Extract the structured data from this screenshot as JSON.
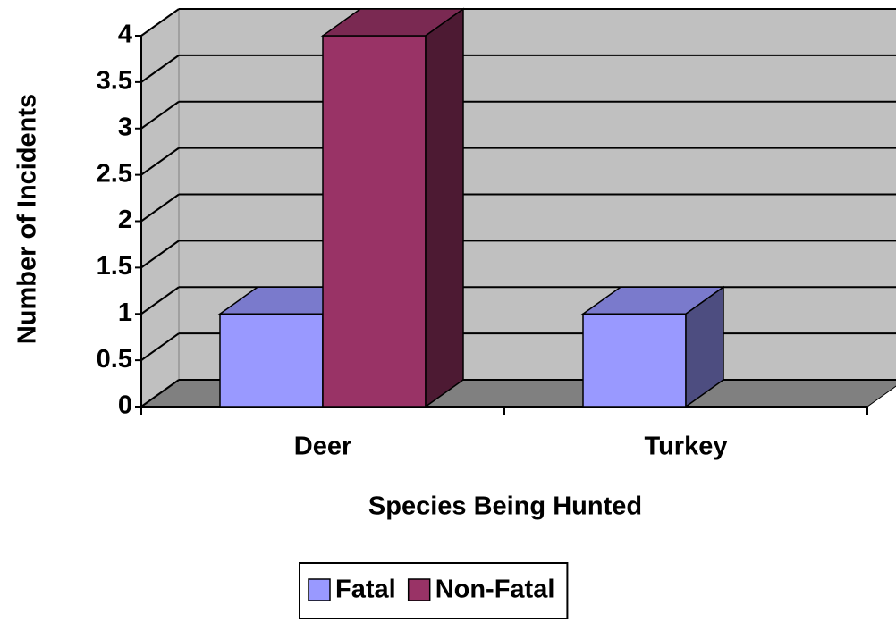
{
  "chart_data": {
    "type": "bar3d",
    "y_axis_label": "Number of Incidents",
    "x_axis_label": "Species Being Hunted",
    "categories": [
      "Deer",
      "Turkey"
    ],
    "series": [
      {
        "name": "Fatal",
        "color": "#9999ff",
        "values": [
          1,
          1
        ]
      },
      {
        "name": "Non-Fatal",
        "color": "#993366",
        "values": [
          4,
          0
        ]
      }
    ],
    "ylim": [
      0,
      4
    ],
    "yticks": [
      0,
      0.5,
      1,
      1.5,
      2,
      2.5,
      3,
      3.5,
      4
    ],
    "grid": true,
    "legend": "bottom"
  }
}
